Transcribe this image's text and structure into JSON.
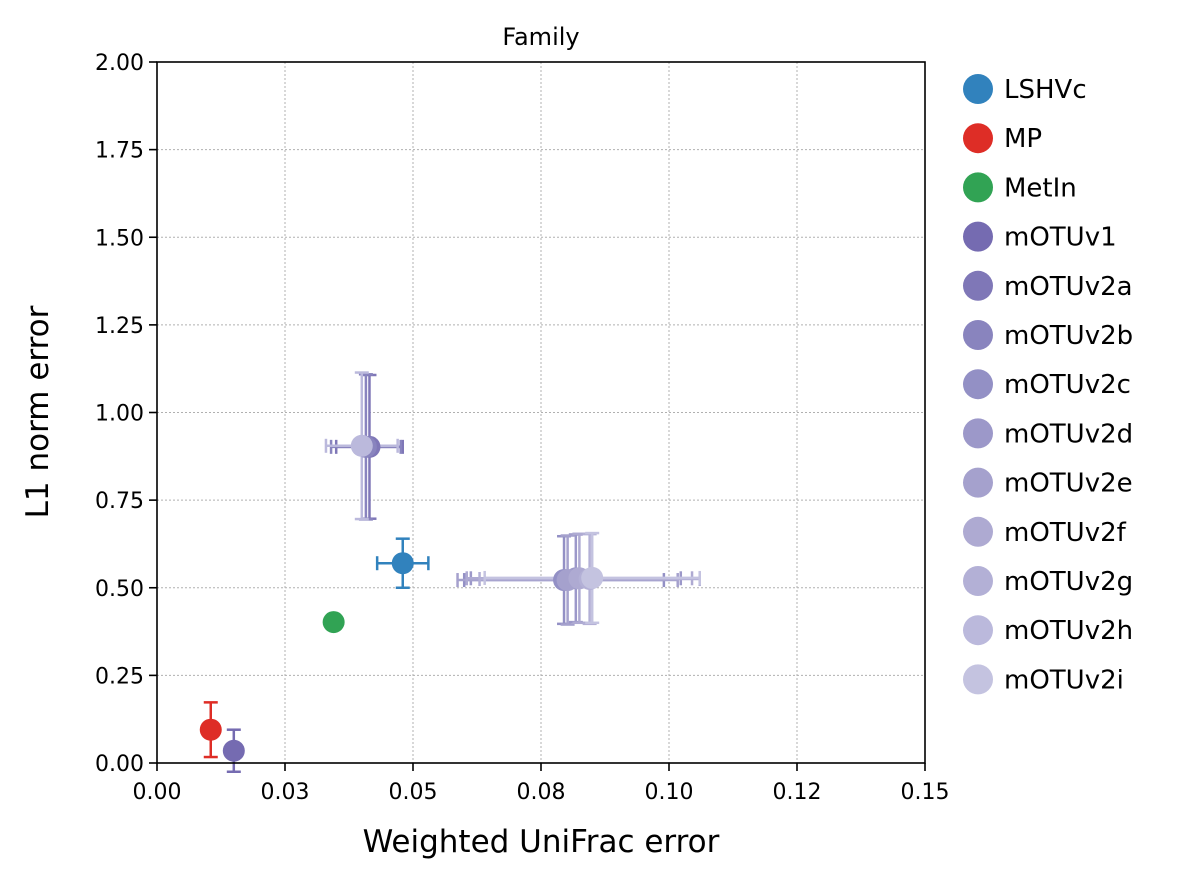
{
  "chart_data": {
    "type": "scatter",
    "title": "Family",
    "xlabel": "Weighted UniFrac error",
    "ylabel": "L1 norm error",
    "xlim": [
      0,
      0.15
    ],
    "ylim": [
      0,
      2.0
    ],
    "x_ticks": [
      0.0,
      0.025,
      0.05,
      0.075,
      0.1,
      0.125,
      0.15
    ],
    "x_tick_labels": [
      "0.00",
      "0.03",
      "0.05",
      "0.08",
      "0.10",
      "0.12",
      "0.15"
    ],
    "y_ticks": [
      0.0,
      0.25,
      0.5,
      0.75,
      1.0,
      1.25,
      1.5,
      1.75,
      2.0
    ],
    "y_tick_labels": [
      "0.00",
      "0.25",
      "0.50",
      "0.75",
      "1.00",
      "1.25",
      "1.50",
      "1.75",
      "2.00"
    ],
    "grid": true,
    "legend_position": "outside-right",
    "series": [
      {
        "name": "LSHVc",
        "color": "#3182bd",
        "x": 0.048,
        "y": 0.57,
        "xerr": 0.005,
        "yerr": 0.07
      },
      {
        "name": "MP",
        "color": "#de2d26",
        "x": 0.0105,
        "y": 0.095,
        "xerr": 0,
        "yerr": 0.078
      },
      {
        "name": "MetIn",
        "color": "#31a354",
        "x": 0.0345,
        "y": 0.402,
        "xerr": 0,
        "yerr": 0
      },
      {
        "name": "mOTUv1",
        "color": "#756bb1",
        "x": 0.015,
        "y": 0.035,
        "xerr": 0,
        "yerr": 0.06
      },
      {
        "name": "mOTUv2a",
        "color": "#7f77b7",
        "x": 0.0415,
        "y": 0.902,
        "xerr": 0.0065,
        "yerr": 0.205
      },
      {
        "name": "mOTUv2b",
        "color": "#8984be",
        "x": 0.0408,
        "y": 0.902,
        "xerr": 0.0068,
        "yerr": 0.207
      },
      {
        "name": "mOTUv2c",
        "color": "#9390c5",
        "x": 0.0795,
        "y": 0.522,
        "xerr": 0.0195,
        "yerr": 0.125
      },
      {
        "name": "mOTUv2d",
        "color": "#9c98c9",
        "x": 0.0818,
        "y": 0.527,
        "xerr": 0.0205,
        "yerr": 0.125
      },
      {
        "name": "mOTUv2e",
        "color": "#a5a1cd",
        "x": 0.0802,
        "y": 0.522,
        "xerr": 0.0215,
        "yerr": 0.127
      },
      {
        "name": "mOTUv2f",
        "color": "#aeaad2",
        "x": 0.0825,
        "y": 0.527,
        "xerr": 0.022,
        "yerr": 0.127
      },
      {
        "name": "mOTUv2g",
        "color": "#b3b0d6",
        "x": 0.0845,
        "y": 0.525,
        "xerr": 0.0215,
        "yerr": 0.128
      },
      {
        "name": "mOTUv2h",
        "color": "#bbb9dc",
        "x": 0.04,
        "y": 0.905,
        "xerr": 0.007,
        "yerr": 0.209
      },
      {
        "name": "mOTUv2i",
        "color": "#c4c3e0",
        "x": 0.085,
        "y": 0.528,
        "xerr": 0.021,
        "yerr": 0.128
      }
    ]
  }
}
